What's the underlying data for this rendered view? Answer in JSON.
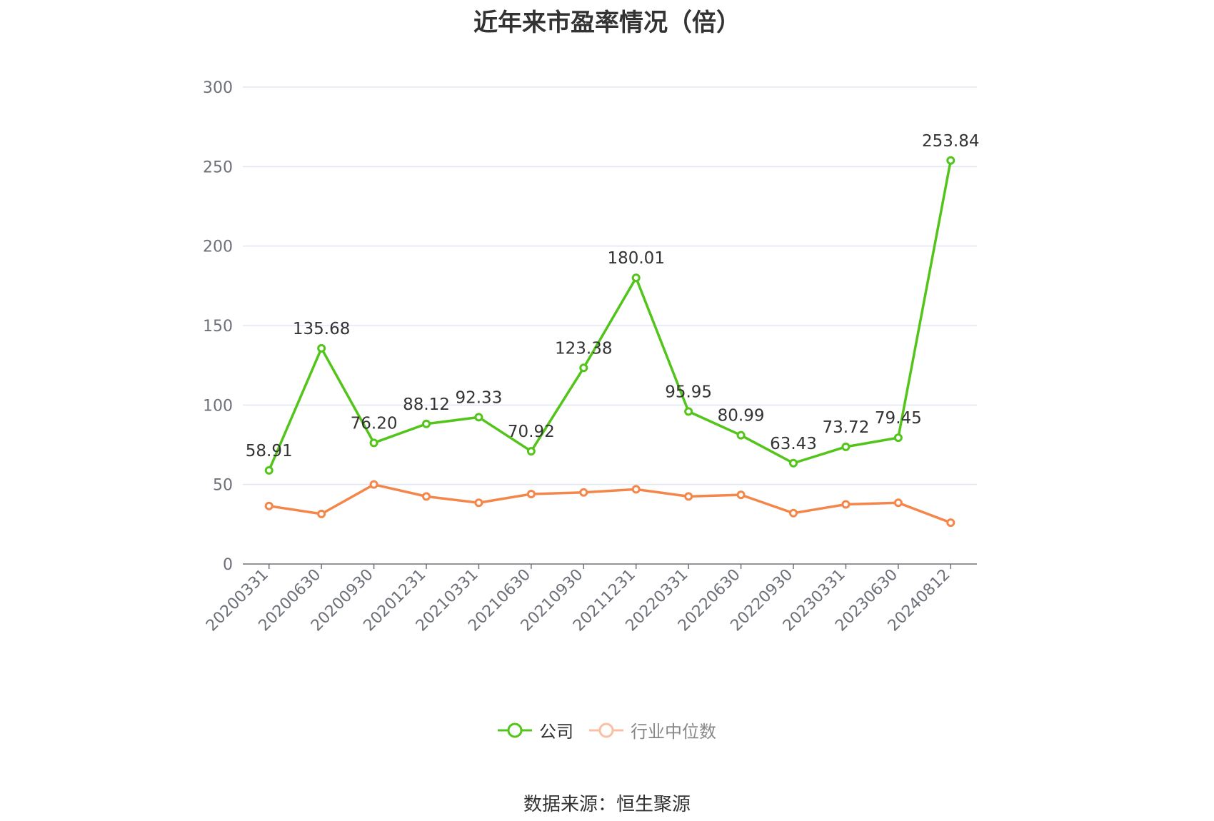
{
  "chart_data": {
    "type": "line",
    "title": "近年来市盈率情况（倍）",
    "categories": [
      "20200331",
      "20200630",
      "20200930",
      "20201231",
      "20210331",
      "20210630",
      "20210930",
      "20211231",
      "20220331",
      "20220630",
      "20220930",
      "20230331",
      "20230630",
      "20240812"
    ],
    "series": [
      {
        "name": "公司",
        "color": "#52c41a",
        "values": [
          58.91,
          135.68,
          76.2,
          88.12,
          92.33,
          70.92,
          123.38,
          180.01,
          95.95,
          80.99,
          63.43,
          73.72,
          79.45,
          253.84
        ],
        "labels": [
          "58.91",
          "135.68",
          "76.20",
          "88.12",
          "92.33",
          "70.92",
          "123.38",
          "180.01",
          "95.95",
          "80.99",
          "63.43",
          "73.72",
          "79.45",
          "253.84"
        ]
      },
      {
        "name": "行业中位数",
        "color": "#f5864a",
        "values": [
          36.5,
          31.5,
          50.0,
          42.5,
          38.5,
          44.0,
          45.0,
          47.0,
          42.5,
          43.5,
          32.0,
          37.5,
          38.5,
          26.0
        ]
      }
    ],
    "ylim": [
      0,
      300
    ],
    "yticks": [
      "0",
      "50",
      "100",
      "150",
      "200",
      "250",
      "300"
    ],
    "grid": true,
    "legend_position": "bottom"
  },
  "source": "数据来源：恒生聚源"
}
